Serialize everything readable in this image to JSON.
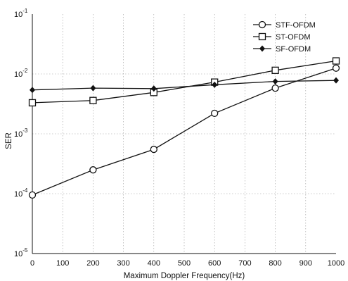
{
  "chart_data": {
    "type": "line",
    "title": "",
    "xlabel": "Maximum Doppler Frequency(Hz)",
    "ylabel": "SER",
    "x": [
      0,
      200,
      400,
      600,
      800,
      1000
    ],
    "x_ticks": [
      "0",
      "100",
      "200",
      "300",
      "400",
      "500",
      "600",
      "700",
      "800",
      "900",
      "1000"
    ],
    "x_tick_values": [
      0,
      100,
      200,
      300,
      400,
      500,
      600,
      700,
      800,
      900,
      1000
    ],
    "y_scale": "log",
    "ylim": [
      1e-05,
      0.1
    ],
    "y_ticks": [
      {
        "base": "10",
        "exp": "-1",
        "value": 0.1
      },
      {
        "base": "10",
        "exp": "-2",
        "value": 0.01
      },
      {
        "base": "10",
        "exp": "-3",
        "value": 0.001
      },
      {
        "base": "10",
        "exp": "-4",
        "value": 0.0001
      },
      {
        "base": "10",
        "exp": "-5",
        "value": 1e-05
      }
    ],
    "grid": true,
    "legend_position": "top-right",
    "series": [
      {
        "name": "STF-OFDM",
        "marker": "circle",
        "values": [
          9.5e-05,
          0.00025,
          0.00055,
          0.0022,
          0.0058,
          0.0125
        ]
      },
      {
        "name": "ST-OFDM",
        "marker": "square",
        "values": [
          0.0033,
          0.0036,
          0.0049,
          0.0073,
          0.0115,
          0.0165
        ]
      },
      {
        "name": "SF-OFDM",
        "marker": "diamond",
        "values": [
          0.0054,
          0.0058,
          0.0057,
          0.0066,
          0.0075,
          0.0078
        ]
      }
    ]
  }
}
